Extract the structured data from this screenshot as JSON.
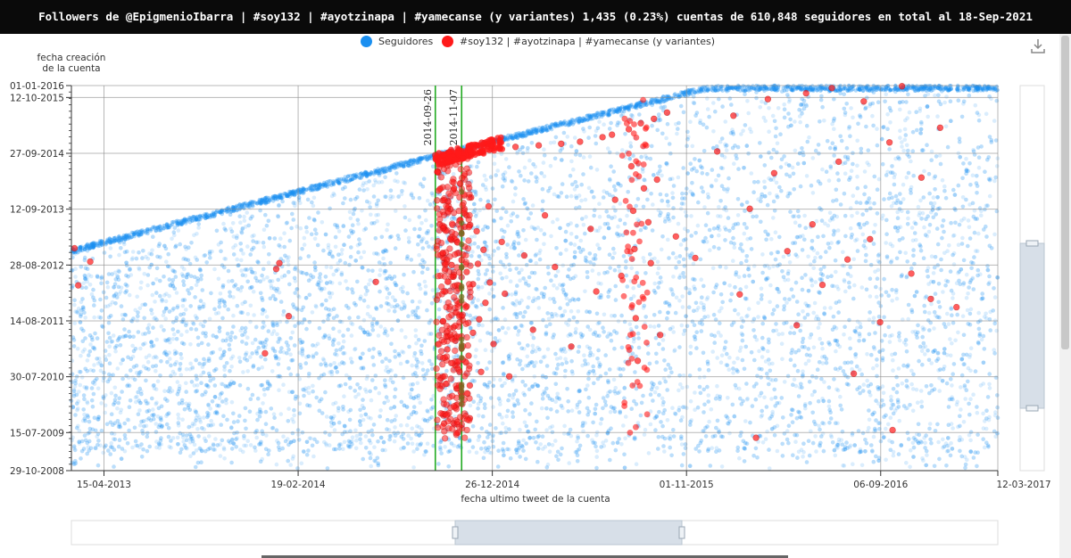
{
  "title": "Followers de @EpigmenioIbarra | #soy132 | #ayotzinapa | #yamecanse (y variantes) 1,435 (0.23%) cuentas de 610,848 seguidores en total al 18-Sep-2021",
  "legend": [
    {
      "label": "Seguidores",
      "color": "#1a8ff0"
    },
    {
      "label": "#soy132 | #ayotzinapa | #yamecanse (y variantes)",
      "color": "#ff1a1a"
    }
  ],
  "icons": {
    "download": "download-icon"
  },
  "chart_data": {
    "type": "scatter",
    "title": "Followers de @EpigmenioIbarra | #soy132 | #ayotzinapa | #yamecanse (y variantes) 1,435 (0.23%) cuentas de 610,848 seguidores en total al 18-Sep-2021",
    "xlabel": "fecha ultimo tweet de la cuenta",
    "ylabel": "fecha creación de la cuenta",
    "xlim": [
      "2013-02-22",
      "2017-03-12"
    ],
    "ylim": [
      "2008-10-29",
      "2016-01-01"
    ],
    "x_ticks": [
      "15-04-2013",
      "19-02-2014",
      "26-12-2014",
      "01-11-2015",
      "06-09-2016",
      "12-03-2017"
    ],
    "y_ticks": [
      "01-01-2016",
      "12-10-2015",
      "27-09-2014",
      "12-09-2013",
      "28-08-2012",
      "14-08-2011",
      "30-07-2010",
      "15-07-2009",
      "29-10-2008"
    ],
    "grid": true,
    "legend_position": "top",
    "reference_lines": [
      {
        "label": "2014-09-26",
        "x": "2014-09-26",
        "color": "#22aa22"
      },
      {
        "label": "2014-11-07",
        "x": "2014-11-07",
        "color": "#22aa22"
      }
    ],
    "series": [
      {
        "name": "Seguidores",
        "color": "#1a8ff0",
        "count": 610848,
        "envelope": [
          [
            "2013-02-22",
            "2012-12-20"
          ],
          [
            "2014-09-26",
            "2014-09-26"
          ],
          [
            "2015-12-03",
            "2016-01-01"
          ],
          [
            "2017-03-12",
            "2016-01-01"
          ]
        ],
        "description": "dense cloud below envelope"
      },
      {
        "name": "#soy132 | #ayotzinapa | #yamecanse (y variantes)",
        "color": "#ff1a1a",
        "count": 1435,
        "points": [
          [
            "2013-02-27",
            "2012-12-20"
          ],
          [
            "2013-03-05",
            "2012-04-12"
          ],
          [
            "2013-03-24",
            "2012-09-20"
          ],
          [
            "2013-12-28",
            "2011-01-05"
          ],
          [
            "2014-02-04",
            "2011-09-15"
          ],
          [
            "2014-01-15",
            "2012-08-01"
          ],
          [
            "2014-01-20",
            "2012-09-10"
          ],
          [
            "2014-06-23",
            "2012-05-05"
          ],
          [
            "2014-09-26",
            "2014-09-15"
          ],
          [
            "2014-10-20",
            "2014-10-01"
          ],
          [
            "2014-10-01",
            "2014-08-28"
          ],
          [
            "2014-10-03",
            "2013-06-01"
          ],
          [
            "2014-10-08",
            "2013-11-10"
          ],
          [
            "2014-10-08",
            "2012-11-14"
          ],
          [
            "2014-10-08",
            "2011-08-10"
          ],
          [
            "2014-10-08",
            "2010-07-30"
          ],
          [
            "2014-10-10",
            "2009-09-15"
          ],
          [
            "2014-10-12",
            "2014-09-20"
          ],
          [
            "2014-10-12",
            "2012-03-01"
          ],
          [
            "2014-10-15",
            "2011-02-01"
          ],
          [
            "2014-10-18",
            "2014-10-05"
          ],
          [
            "2014-10-20",
            "2013-09-12"
          ],
          [
            "2014-10-22",
            "2013-02-15"
          ],
          [
            "2014-10-22",
            "2012-08-28"
          ],
          [
            "2014-10-25",
            "2012-06-10"
          ],
          [
            "2014-10-25",
            "2011-07-01"
          ],
          [
            "2014-10-28",
            "2011-04-01"
          ],
          [
            "2014-10-28",
            "2010-10-15"
          ],
          [
            "2014-10-30",
            "2010-05-10"
          ],
          [
            "2014-11-01",
            "2009-07-15"
          ],
          [
            "2014-11-03",
            "2014-10-10"
          ],
          [
            "2014-11-05",
            "2013-07-01"
          ],
          [
            "2014-11-07",
            "2012-10-01"
          ],
          [
            "2014-11-07",
            "2011-09-15"
          ],
          [
            "2014-11-07",
            "2011-02-10"
          ],
          [
            "2014-11-07",
            "2010-03-20"
          ],
          [
            "2014-11-10",
            "2014-09-28"
          ],
          [
            "2014-11-12",
            "2013-05-15"
          ],
          [
            "2014-11-15",
            "2012-07-12"
          ],
          [
            "2014-11-15",
            "2011-11-20"
          ],
          [
            "2014-11-18",
            "2010-12-20"
          ],
          [
            "2014-11-20",
            "2010-06-01"
          ],
          [
            "2014-11-20",
            "2009-10-20"
          ],
          [
            "2014-11-22",
            "2013-12-01"
          ],
          [
            "2014-11-25",
            "2012-04-20"
          ],
          [
            "2014-11-25",
            "2011-05-25"
          ],
          [
            "2014-11-28",
            "2014-10-12"
          ],
          [
            "2014-12-01",
            "2013-04-15"
          ],
          [
            "2014-12-03",
            "2012-09-05"
          ],
          [
            "2014-12-05",
            "2011-08-25"
          ],
          [
            "2014-12-08",
            "2010-09-01"
          ],
          [
            "2014-12-10",
            "2014-10-15"
          ],
          [
            "2014-12-12",
            "2012-12-10"
          ],
          [
            "2014-12-15",
            "2011-12-15"
          ],
          [
            "2014-12-18",
            "2014-10-25"
          ],
          [
            "2014-12-20",
            "2013-10-01"
          ],
          [
            "2014-12-22",
            "2012-05-01"
          ],
          [
            "2014-12-28",
            "2011-03-10"
          ],
          [
            "2015-01-05",
            "2014-11-01"
          ],
          [
            "2015-01-10",
            "2013-02-01"
          ],
          [
            "2015-01-15",
            "2012-02-15"
          ],
          [
            "2015-01-22",
            "2010-08-01"
          ],
          [
            "2015-02-01",
            "2014-11-10"
          ],
          [
            "2015-02-15",
            "2012-11-01"
          ],
          [
            "2015-03-01",
            "2011-06-15"
          ],
          [
            "2015-03-10",
            "2014-11-20"
          ],
          [
            "2015-03-20",
            "2013-08-01"
          ],
          [
            "2015-04-05",
            "2012-08-15"
          ],
          [
            "2015-04-15",
            "2014-12-01"
          ],
          [
            "2015-05-01",
            "2011-02-20"
          ],
          [
            "2015-05-15",
            "2014-12-15"
          ],
          [
            "2015-06-01",
            "2013-05-01"
          ],
          [
            "2015-06-10",
            "2012-03-01"
          ],
          [
            "2015-06-20",
            "2015-01-15"
          ],
          [
            "2015-07-05",
            "2015-02-01"
          ],
          [
            "2015-07-10",
            "2013-11-15"
          ],
          [
            "2015-07-20",
            "2012-06-15"
          ],
          [
            "2015-08-01",
            "2015-03-10"
          ],
          [
            "2015-08-05",
            "2014-07-01"
          ],
          [
            "2015-08-08",
            "2013-09-01"
          ],
          [
            "2015-08-10",
            "2012-12-15"
          ],
          [
            "2015-08-12",
            "2011-09-01"
          ],
          [
            "2015-08-15",
            "2010-11-15"
          ],
          [
            "2015-08-20",
            "2015-04-20"
          ],
          [
            "2015-08-25",
            "2014-02-01"
          ],
          [
            "2015-09-01",
            "2013-06-15"
          ],
          [
            "2015-09-05",
            "2012-09-10"
          ],
          [
            "2015-09-10",
            "2015-05-20"
          ],
          [
            "2015-09-15",
            "2014-04-01"
          ],
          [
            "2015-09-20",
            "2011-05-10"
          ],
          [
            "2015-10-01",
            "2015-07-01"
          ],
          [
            "2015-10-15",
            "2013-03-10"
          ],
          [
            "2015-11-15",
            "2012-10-15"
          ],
          [
            "2015-12-20",
            "2014-10-10"
          ],
          [
            "2016-01-15",
            "2015-06-10"
          ],
          [
            "2016-01-25",
            "2012-02-10"
          ],
          [
            "2016-02-10",
            "2013-09-15"
          ],
          [
            "2016-02-20",
            "2009-06-10"
          ],
          [
            "2016-03-10",
            "2015-10-01"
          ],
          [
            "2016-03-20",
            "2014-05-15"
          ],
          [
            "2016-04-10",
            "2012-11-30"
          ],
          [
            "2016-04-25",
            "2011-07-15"
          ],
          [
            "2016-05-10",
            "2015-11-10"
          ],
          [
            "2016-05-20",
            "2013-06-01"
          ],
          [
            "2016-06-05",
            "2012-04-15"
          ],
          [
            "2016-06-20",
            "2015-12-15"
          ],
          [
            "2016-07-01",
            "2014-08-01"
          ],
          [
            "2016-07-15",
            "2012-10-05"
          ],
          [
            "2016-07-25",
            "2010-08-20"
          ],
          [
            "2016-08-10",
            "2015-09-15"
          ],
          [
            "2016-08-20",
            "2013-02-20"
          ],
          [
            "2016-09-05",
            "2011-08-05"
          ],
          [
            "2016-09-20",
            "2014-12-10"
          ],
          [
            "2016-09-25",
            "2009-08-01"
          ],
          [
            "2016-10-10",
            "2015-12-28"
          ],
          [
            "2016-10-25",
            "2012-07-01"
          ],
          [
            "2016-11-10",
            "2014-04-15"
          ],
          [
            "2016-11-25",
            "2012-01-10"
          ],
          [
            "2016-12-10",
            "2015-03-20"
          ],
          [
            "2017-01-05",
            "2011-11-15"
          ]
        ],
        "description": "dense red column around 2014-10 to 2014-11; red cluster along the upper envelope near 2014-09-26"
      }
    ]
  }
}
